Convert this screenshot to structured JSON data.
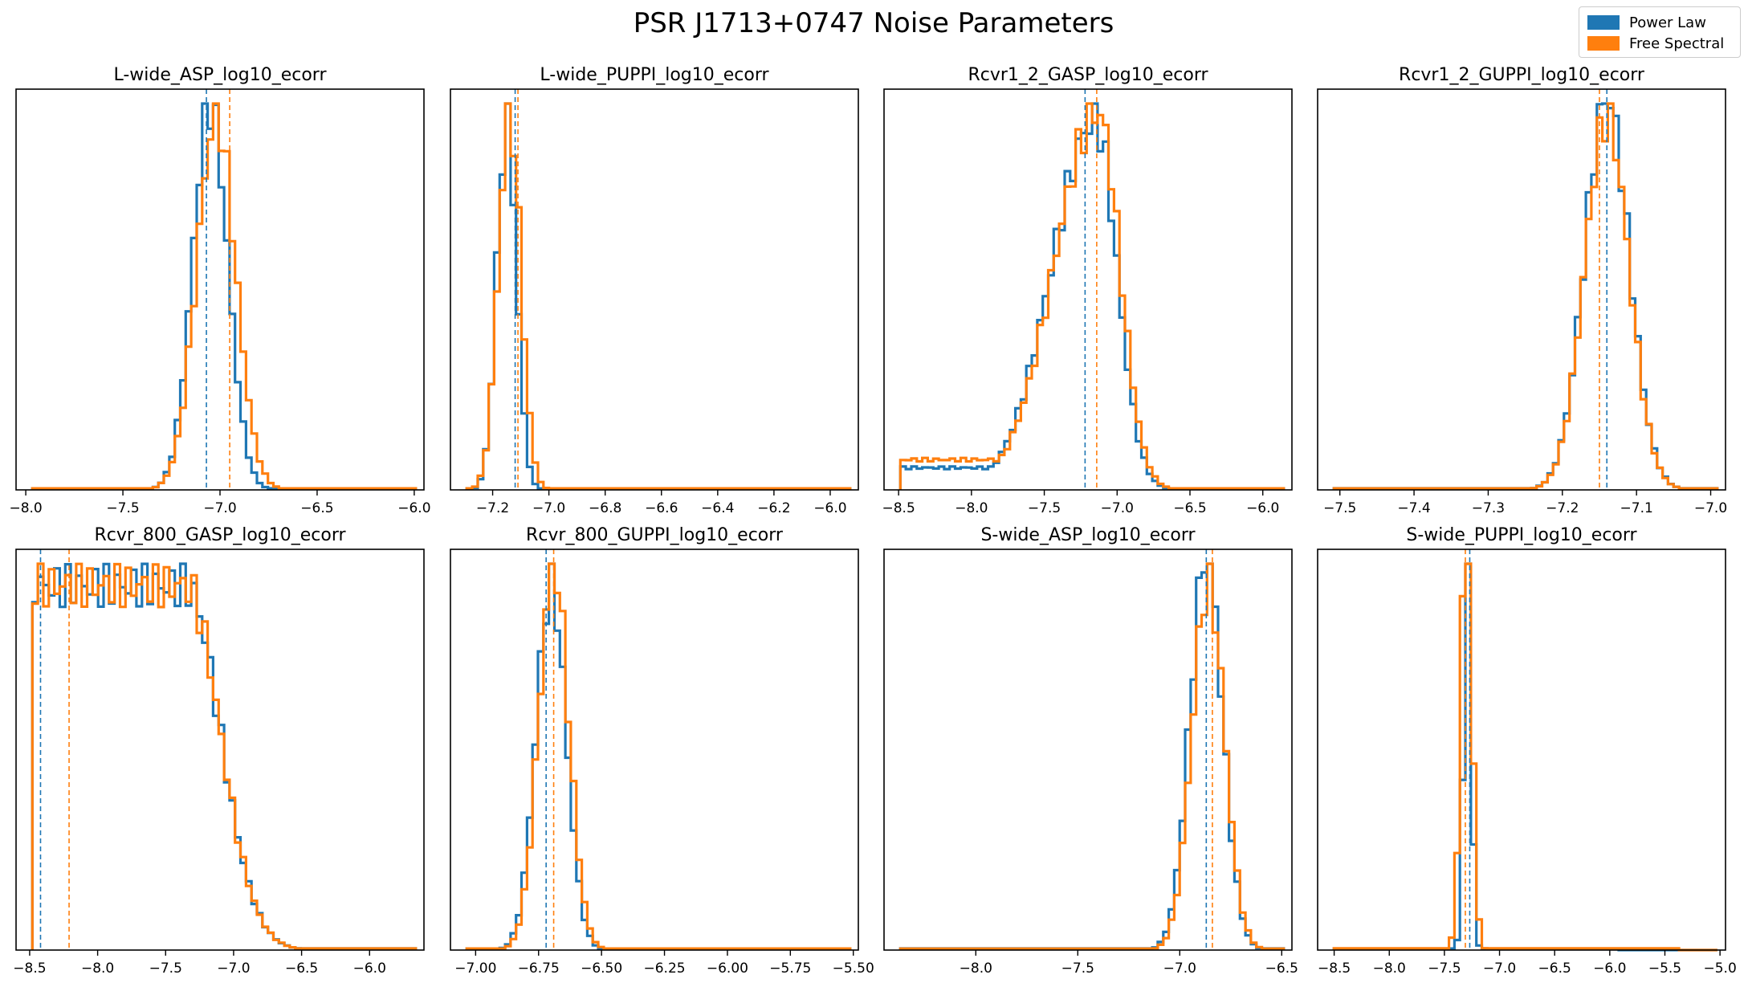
{
  "figure": {
    "title": "PSR J1713+0747 Noise Parameters"
  },
  "legend": {
    "entries": [
      {
        "label": "Power Law",
        "color": "#1f77b4"
      },
      {
        "label": "Free Spectral",
        "color": "#ff7f0e"
      }
    ]
  },
  "chart_data": [
    {
      "type": "histogram",
      "title": "L-wide_ASP_log10_ecorr",
      "xlim": [
        -8.05,
        -5.95
      ],
      "xticks": [
        -8.0,
        -7.5,
        -7.0,
        -6.5,
        -6.0
      ],
      "xtick_labels": [
        "−8.0",
        "−7.5",
        "−7.0",
        "−6.5",
        "−6.0"
      ],
      "yticks": "none",
      "series": [
        {
          "name": "Power Law",
          "color": "#1f77b4",
          "dist": {
            "kind": "normal",
            "mu": -7.05,
            "sigma": 0.09
          },
          "median": -7.07
        },
        {
          "name": "Free Spectral",
          "color": "#ff7f0e",
          "dist": {
            "kind": "normal",
            "mu": -7.02,
            "sigma": 0.1
          },
          "median": -6.95
        }
      ]
    },
    {
      "type": "histogram",
      "title": "L-wide_PUPPI_log10_ecorr",
      "xlim": [
        -7.35,
        -5.9
      ],
      "xticks": [
        -7.2,
        -7.0,
        -6.8,
        -6.6,
        -6.4,
        -6.2,
        -6.0
      ],
      "xtick_labels": [
        "−7.2",
        "−7.0",
        "−6.8",
        "−6.6",
        "−6.4",
        "−6.2",
        "−6.0"
      ],
      "yticks": "none",
      "series": [
        {
          "name": "Power Law",
          "color": "#1f77b4",
          "dist": {
            "kind": "normal",
            "mu": -7.15,
            "sigma": 0.035
          },
          "median": -7.12
        },
        {
          "name": "Free Spectral",
          "color": "#ff7f0e",
          "dist": {
            "kind": "normal",
            "mu": -7.14,
            "sigma": 0.04
          },
          "median": -7.11
        }
      ]
    },
    {
      "type": "histogram",
      "title": "Rcvr1_2_GASP_log10_ecorr",
      "xlim": [
        -8.6,
        -5.8
      ],
      "xticks": [
        -8.5,
        -8.0,
        -7.5,
        -7.0,
        -6.5,
        -6.0
      ],
      "xtick_labels": [
        "−8.5",
        "−8.0",
        "−7.5",
        "−7.0",
        "−6.5",
        "−6.0"
      ],
      "yticks": "none",
      "series": [
        {
          "name": "Power Law",
          "color": "#1f77b4",
          "dist": {
            "kind": "skewed",
            "mu": -7.15,
            "sigma_left": 0.3,
            "sigma_right": 0.15,
            "floor": 0.06
          },
          "median": -7.22
        },
        {
          "name": "Free Spectral",
          "color": "#ff7f0e",
          "dist": {
            "kind": "skewed",
            "mu": -7.13,
            "sigma_left": 0.3,
            "sigma_right": 0.15,
            "floor": 0.08
          },
          "median": -7.14
        }
      ]
    },
    {
      "type": "histogram",
      "title": "Rcvr1_2_GUPPI_log10_ecorr",
      "xlim": [
        -7.53,
        -6.98
      ],
      "xticks": [
        -7.5,
        -7.4,
        -7.3,
        -7.2,
        -7.1,
        -7.0
      ],
      "xtick_labels": [
        "−7.5",
        "−7.4",
        "−7.3",
        "−7.2",
        "−7.1",
        "−7.0"
      ],
      "yticks": "none",
      "series": [
        {
          "name": "Power Law",
          "color": "#1f77b4",
          "dist": {
            "kind": "normal",
            "mu": -7.14,
            "sigma": 0.03
          },
          "median": -7.14
        },
        {
          "name": "Free Spectral",
          "color": "#ff7f0e",
          "dist": {
            "kind": "normal",
            "mu": -7.14,
            "sigma": 0.03
          },
          "median": -7.15
        }
      ]
    },
    {
      "type": "histogram",
      "title": "Rcvr_800_GASP_log10_ecorr",
      "xlim": [
        -8.6,
        -5.6
      ],
      "xticks": [
        -8.5,
        -8.0,
        -7.5,
        -7.0,
        -6.5,
        -6.0
      ],
      "xtick_labels": [
        "−8.5",
        "−8.0",
        "−7.5",
        "−7.0",
        "−6.5",
        "−6.0"
      ],
      "yticks": "none",
      "series": [
        {
          "name": "Power Law",
          "color": "#1f77b4",
          "dist": {
            "kind": "plateau",
            "edge_left": -8.5,
            "knee": -7.35,
            "sigma": 0.25,
            "level": 0.93
          },
          "median": -8.42
        },
        {
          "name": "Free Spectral",
          "color": "#ff7f0e",
          "dist": {
            "kind": "plateau",
            "edge_left": -8.5,
            "knee": -7.35,
            "sigma": 0.25,
            "level": 0.92
          },
          "median": -8.21
        }
      ]
    },
    {
      "type": "histogram",
      "title": "Rcvr_800_GUPPI_log10_ecorr",
      "xlim": [
        -7.1,
        -5.48
      ],
      "xticks": [
        -7.0,
        -6.75,
        -6.5,
        -6.25,
        -6.0,
        -5.75,
        -5.5
      ],
      "xtick_labels": [
        "−7.00",
        "−6.75",
        "−6.50",
        "−6.25",
        "−6.00",
        "−5.75",
        "−5.50"
      ],
      "yticks": "none",
      "series": [
        {
          "name": "Power Law",
          "color": "#1f77b4",
          "dist": {
            "kind": "normal",
            "mu": -6.7,
            "sigma": 0.06
          },
          "median": -6.72
        },
        {
          "name": "Free Spectral",
          "color": "#ff7f0e",
          "dist": {
            "kind": "normal",
            "mu": -6.69,
            "sigma": 0.06
          },
          "median": -6.69
        }
      ]
    },
    {
      "type": "histogram",
      "title": "S-wide_ASP_log10_ecorr",
      "xlim": [
        -8.45,
        -6.45
      ],
      "xticks": [
        -8.0,
        -7.5,
        -7.0,
        -6.5
      ],
      "xtick_labels": [
        "−8.0",
        "−7.5",
        "−7.0",
        "−6.5"
      ],
      "yticks": "none",
      "series": [
        {
          "name": "Power Law",
          "color": "#1f77b4",
          "dist": {
            "kind": "normal",
            "mu": -6.87,
            "sigma": 0.08
          },
          "median": -6.87
        },
        {
          "name": "Free Spectral",
          "color": "#ff7f0e",
          "dist": {
            "kind": "normal",
            "mu": -6.86,
            "sigma": 0.08
          },
          "median": -6.84
        }
      ]
    },
    {
      "type": "histogram",
      "title": "S-wide_PUPPI_log10_ecorr",
      "xlim": [
        -8.65,
        -4.95
      ],
      "xticks": [
        -8.5,
        -8.0,
        -7.5,
        -7.0,
        -6.5,
        -6.0,
        -5.5,
        -5.0
      ],
      "xtick_labels": [
        "−8.5",
        "−8.0",
        "−7.5",
        "−7.0",
        "−6.5",
        "−6.0",
        "−5.5",
        "−5.0"
      ],
      "yticks": "none",
      "series": [
        {
          "name": "Power Law",
          "color": "#1f77b4",
          "dist": {
            "kind": "normal",
            "mu": -7.29,
            "sigma": 0.035
          },
          "median": -7.27
        },
        {
          "name": "Free Spectral",
          "color": "#ff7f0e",
          "dist": {
            "kind": "normal",
            "mu": -7.3,
            "sigma": 0.05
          },
          "median": -7.31
        }
      ]
    }
  ]
}
